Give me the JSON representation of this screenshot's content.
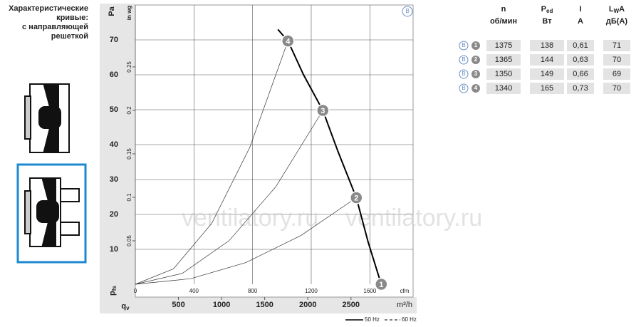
{
  "sidebar": {
    "title_lines": [
      "Характеристические",
      "кривые:",
      "с направляющей",
      "решеткой"
    ]
  },
  "chart_data": {
    "type": "line",
    "badge": "B",
    "y_label": "Pa",
    "y2_label": "in wg",
    "x_label": "m³/h",
    "x2_label": "cfm",
    "y_symbol": {
      "main": "p",
      "sub": "fs"
    },
    "x_symbol": {
      "main": "q",
      "sub": "v"
    },
    "xlim": [
      0,
      3220
    ],
    "xticks": [
      500,
      1000,
      1500,
      2000,
      2500
    ],
    "x2lim": [
      0,
      1895
    ],
    "x2ticks": [
      0,
      400,
      800,
      1200,
      1600
    ],
    "ylim": [
      0,
      80
    ],
    "yticks": [
      10,
      20,
      30,
      40,
      50,
      60,
      70
    ],
    "y2lim": [
      0,
      0.3212
    ],
    "y2ticks": [
      0.05,
      0.1,
      0.15,
      0.2,
      0.25
    ],
    "grid": true,
    "series": [
      {
        "name": "50 Hz",
        "color": "#000000",
        "x": [
          1653,
          1769,
          1950,
          2174,
          2350,
          2562,
          2700,
          2851
        ],
        "values": [
          73,
          69.7,
          60,
          49.8,
          38,
          24.8,
          12,
          0
        ]
      }
    ],
    "extra_legend": {
      "name": "60 Hz",
      "dash": "4 3"
    },
    "system_curves": [
      {
        "color": "#333333",
        "x": [
          0,
          641,
          1281,
          1922,
          2562
        ],
        "values": [
          0,
          1.6,
          6.2,
          14.0,
          24.8
        ]
      },
      {
        "color": "#333333",
        "x": [
          0,
          544,
          1087,
          1631,
          2174
        ],
        "values": [
          0,
          3.1,
          12.5,
          28.0,
          49.8
        ]
      },
      {
        "color": "#333333",
        "x": [
          0,
          442,
          885,
          1327,
          1769
        ],
        "values": [
          0,
          4.4,
          17.4,
          39.2,
          69.7
        ]
      }
    ],
    "operating_points": {
      "color": "#8a8a8a",
      "labels": [
        "1",
        "2",
        "3",
        "4"
      ],
      "x": [
        2851,
        2562,
        2174,
        1769
      ],
      "values": [
        0,
        24.8,
        49.8,
        69.7
      ]
    },
    "watermark": [
      "ventilatory.ru",
      "ventilatory.ru"
    ]
  },
  "table": {
    "headers": [
      {
        "main": "n",
        "unit": "об/мин"
      },
      {
        "main": "P",
        "sub": "ed",
        "unit": "Вт"
      },
      {
        "main": "I",
        "unit": "A"
      },
      {
        "main": "L",
        "sub": "W",
        "rest": "A",
        "unit": "дБ(A)"
      }
    ],
    "rows": [
      {
        "badge": "B",
        "point": "1",
        "cells": [
          "1375",
          "138",
          "0,61",
          "71"
        ]
      },
      {
        "badge": "B",
        "point": "2",
        "cells": [
          "1365",
          "144",
          "0,63",
          "70"
        ]
      },
      {
        "badge": "B",
        "point": "3",
        "cells": [
          "1350",
          "149",
          "0,66",
          "69"
        ]
      },
      {
        "badge": "B",
        "point": "4",
        "cells": [
          "1340",
          "165",
          "0,73",
          "70"
        ]
      }
    ]
  }
}
